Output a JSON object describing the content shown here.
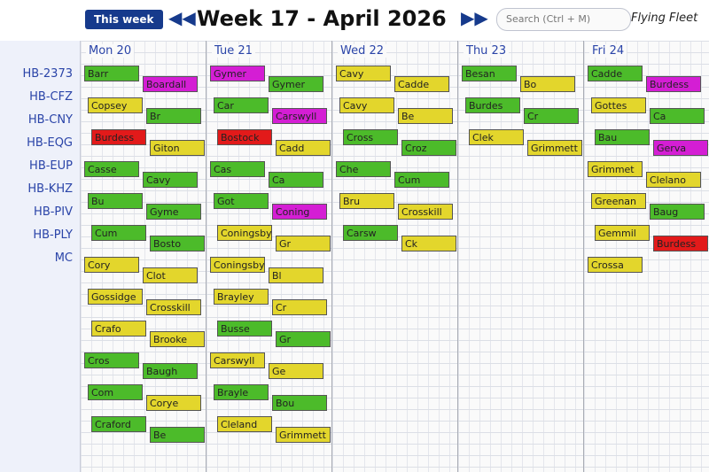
{
  "header": {
    "logo": "Flying Fleet",
    "search_placeholder": "Search (Ctrl + M)",
    "this_week": "This week",
    "title": "Week 17 - April 2026"
  },
  "aircraft": [
    "HB-2373",
    "HB-CFZ",
    "HB-CNY",
    "HB-EQG",
    "HB-EUP",
    "HB-KHZ",
    "HB-PIV",
    "HB-PLY",
    "MC"
  ],
  "colors": {
    "green": "#4cbb2a",
    "yellow": "#e3d62c",
    "magenta": "#d41ed4",
    "red": "#e21a1a"
  },
  "days": [
    {
      "label": "Mon 20",
      "blocks": [
        {
          "name": "Barr",
          "color": "green"
        },
        {
          "name": "Boardall",
          "color": "magenta"
        },
        {
          "name": "Copsey",
          "color": "yellow"
        },
        {
          "name": "Br",
          "color": "green"
        },
        {
          "name": "Burdess",
          "color": "red"
        },
        {
          "name": "Giton",
          "color": "yellow"
        },
        {
          "name": "Casse",
          "color": "green"
        },
        {
          "name": "Cavy",
          "color": "green"
        },
        {
          "name": "Bu",
          "color": "green"
        },
        {
          "name": "Gyme",
          "color": "green"
        },
        {
          "name": "Cum",
          "color": "green"
        },
        {
          "name": "Bosto",
          "color": "green"
        },
        {
          "name": "Cory",
          "color": "yellow"
        },
        {
          "name": "Clot",
          "color": "yellow"
        },
        {
          "name": "Gossidge",
          "color": "yellow"
        },
        {
          "name": "Crosskill",
          "color": "yellow"
        },
        {
          "name": "Crafo",
          "color": "yellow"
        },
        {
          "name": "Brooke",
          "color": "yellow"
        },
        {
          "name": "Cros",
          "color": "green"
        },
        {
          "name": "Baugh",
          "color": "green"
        },
        {
          "name": "Com",
          "color": "green"
        },
        {
          "name": "Corye",
          "color": "yellow"
        },
        {
          "name": "Craford",
          "color": "green"
        },
        {
          "name": "Be",
          "color": "green"
        }
      ]
    },
    {
      "label": "Tue 21",
      "blocks": [
        {
          "name": "Gymer",
          "color": "magenta"
        },
        {
          "name": "Gymer",
          "color": "green"
        },
        {
          "name": "Car",
          "color": "green"
        },
        {
          "name": "Carswyll",
          "color": "magenta"
        },
        {
          "name": "Bostock",
          "color": "red"
        },
        {
          "name": "Cadd",
          "color": "yellow"
        },
        {
          "name": "Cas",
          "color": "green"
        },
        {
          "name": "Ca",
          "color": "green"
        },
        {
          "name": "Got",
          "color": "green"
        },
        {
          "name": "Coning",
          "color": "magenta"
        },
        {
          "name": "Coningsby",
          "color": "yellow"
        },
        {
          "name": "Gr",
          "color": "yellow"
        },
        {
          "name": "Coningsby",
          "color": "yellow"
        },
        {
          "name": "Bl",
          "color": "yellow"
        },
        {
          "name": "Brayley",
          "color": "yellow"
        },
        {
          "name": "Cr",
          "color": "yellow"
        },
        {
          "name": "Busse",
          "color": "green"
        },
        {
          "name": "Gr",
          "color": "green"
        },
        {
          "name": "Carswyll",
          "color": "yellow"
        },
        {
          "name": "Ge",
          "color": "yellow"
        },
        {
          "name": "Brayle",
          "color": "green"
        },
        {
          "name": "Bou",
          "color": "green"
        },
        {
          "name": "Cleland",
          "color": "yellow"
        },
        {
          "name": "Grimmett",
          "color": "yellow"
        }
      ]
    },
    {
      "label": "Wed 22",
      "blocks": [
        {
          "name": "Cavy",
          "color": "yellow"
        },
        {
          "name": "Cadde",
          "color": "yellow"
        },
        {
          "name": "Cavy",
          "color": "yellow"
        },
        {
          "name": "Be",
          "color": "yellow"
        },
        {
          "name": "Cross",
          "color": "green"
        },
        {
          "name": "Croz",
          "color": "green"
        },
        {
          "name": "Che",
          "color": "green"
        },
        {
          "name": "Cum",
          "color": "green"
        },
        {
          "name": "Bru",
          "color": "yellow"
        },
        {
          "name": "Crosskill",
          "color": "yellow"
        },
        {
          "name": "Carsw",
          "color": "green"
        },
        {
          "name": "Ck",
          "color": "yellow"
        }
      ]
    },
    {
      "label": "Thu 23",
      "blocks": [
        {
          "name": "Besan",
          "color": "green"
        },
        {
          "name": "Bo",
          "color": "yellow"
        },
        {
          "name": "Burdes",
          "color": "green"
        },
        {
          "name": "Cr",
          "color": "green"
        },
        {
          "name": "Clek",
          "color": "yellow"
        },
        {
          "name": "Grimmett",
          "color": "yellow"
        }
      ]
    },
    {
      "label": "Fri 24",
      "blocks": [
        {
          "name": "Cadde",
          "color": "green"
        },
        {
          "name": "Burdess",
          "color": "magenta"
        },
        {
          "name": "Gottes",
          "color": "yellow"
        },
        {
          "name": "Ca",
          "color": "green"
        },
        {
          "name": "Bau",
          "color": "green"
        },
        {
          "name": "Gerva",
          "color": "magenta"
        },
        {
          "name": "Grimmet",
          "color": "yellow"
        },
        {
          "name": "Clelano",
          "color": "yellow"
        },
        {
          "name": "Greenan",
          "color": "yellow"
        },
        {
          "name": "Baug",
          "color": "green"
        },
        {
          "name": "Gemmil",
          "color": "yellow"
        },
        {
          "name": "Burdess",
          "color": "red"
        },
        {
          "name": "Crossa",
          "color": "yellow"
        }
      ]
    }
  ]
}
